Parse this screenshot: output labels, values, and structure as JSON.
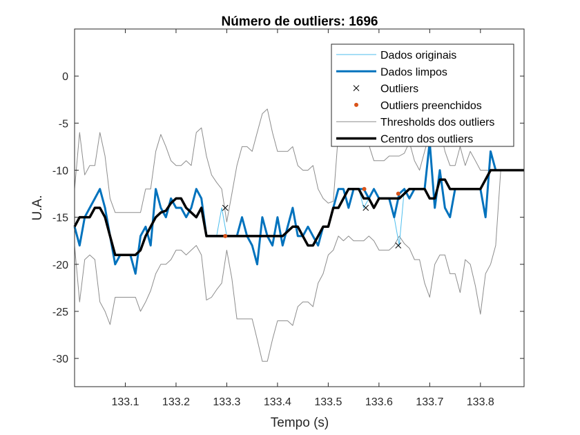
{
  "chart_data": {
    "type": "line",
    "title": "Número de outliers: 1696",
    "xlabel": "Tempo (s)",
    "ylabel": "U.A.",
    "xlim": [
      133.0,
      133.886
    ],
    "ylim": [
      -33,
      5
    ],
    "xticks": [
      133.1,
      133.2,
      133.3,
      133.4,
      133.5,
      133.6,
      133.7,
      133.8
    ],
    "xtick_labels": [
      "133.1",
      "133.2",
      "133.3",
      "133.4",
      "133.5",
      "133.6",
      "133.7",
      "133.8"
    ],
    "yticks": [
      0,
      -5,
      -10,
      -15,
      -20,
      -25,
      -30
    ],
    "ytick_labels": [
      "0",
      "-5",
      "-10",
      "-15",
      "-20",
      "-25",
      "-30"
    ],
    "grid": false,
    "legend_position": "top-right",
    "colors": {
      "original": "#4DBEEE",
      "clean": "#0072BD",
      "outlier_marker": "#000000",
      "filled": "#D95319",
      "threshold": "#8C8C8C",
      "center": "#000000"
    },
    "legend": [
      {
        "label": "Dados originais",
        "style": "line-thin",
        "color": "#4DBEEE"
      },
      {
        "label": "Dados limpos",
        "style": "line-thick",
        "color": "#0072BD"
      },
      {
        "label": "Outliers",
        "style": "x-marker",
        "color": "#000000"
      },
      {
        "label": "Outliers preenchidos",
        "style": "dot-marker",
        "color": "#D95319"
      },
      {
        "label": "Thresholds dos outliers",
        "style": "line-thin",
        "color": "#8C8C8C"
      },
      {
        "label": "Centro dos outliers",
        "style": "line-bold",
        "color": "#000000"
      }
    ],
    "series": [
      {
        "name": "Dados originais",
        "x": [
          133.0,
          133.01,
          133.02,
          133.03,
          133.04,
          133.05,
          133.06,
          133.07,
          133.08,
          133.09,
          133.1,
          133.11,
          133.12,
          133.13,
          133.14,
          133.15,
          133.16,
          133.17,
          133.18,
          133.19,
          133.2,
          133.21,
          133.22,
          133.23,
          133.24,
          133.25,
          133.26,
          133.27,
          133.28,
          133.29,
          133.3,
          133.31,
          133.32,
          133.33,
          133.34,
          133.35,
          133.36,
          133.37,
          133.38,
          133.39,
          133.4,
          133.41,
          133.42,
          133.43,
          133.44,
          133.45,
          133.46,
          133.47,
          133.48,
          133.49,
          133.5,
          133.51,
          133.52,
          133.53,
          133.54,
          133.55,
          133.56,
          133.57,
          133.58,
          133.59,
          133.6,
          133.61,
          133.62,
          133.63,
          133.64,
          133.65,
          133.66,
          133.67,
          133.68,
          133.69,
          133.7,
          133.71,
          133.72,
          133.73,
          133.74,
          133.75,
          133.76,
          133.77,
          133.78,
          133.79,
          133.8,
          133.81,
          133.82,
          133.83,
          133.84
        ],
        "y": [
          -16,
          -18,
          -15,
          -14,
          -13,
          -12,
          -14,
          -17,
          -20,
          -19,
          -19,
          -19,
          -21,
          -17,
          -16,
          -18,
          -12,
          -14,
          -15,
          -13,
          -14,
          -14,
          -15,
          -14,
          -12,
          -13,
          -17,
          -17,
          -17,
          -14,
          -17,
          -17,
          -17,
          -15,
          -17,
          -18,
          -20,
          -15,
          -17,
          -18,
          -15,
          -18,
          -16,
          -14,
          -17,
          -17,
          -16,
          -17,
          -18,
          -16,
          -16,
          -14,
          -12,
          -12,
          -14,
          -12,
          -12,
          -14,
          -13,
          -12,
          -13,
          -13,
          -13,
          -15,
          -18,
          -12,
          -13,
          -12,
          -12,
          -12,
          -7,
          -14,
          -10,
          -14,
          -15,
          -12,
          -12,
          -12,
          -12,
          -12,
          -12,
          -15,
          -8,
          -10,
          -10
        ]
      },
      {
        "name": "Dados limpos",
        "x": [
          133.0,
          133.01,
          133.02,
          133.03,
          133.04,
          133.05,
          133.06,
          133.07,
          133.08,
          133.09,
          133.1,
          133.11,
          133.12,
          133.13,
          133.14,
          133.15,
          133.16,
          133.17,
          133.18,
          133.19,
          133.2,
          133.21,
          133.22,
          133.23,
          133.24,
          133.25,
          133.26,
          133.27,
          133.28,
          133.29,
          133.3,
          133.31,
          133.32,
          133.33,
          133.34,
          133.35,
          133.36,
          133.37,
          133.38,
          133.39,
          133.4,
          133.41,
          133.42,
          133.43,
          133.44,
          133.45,
          133.46,
          133.47,
          133.48,
          133.49,
          133.5,
          133.51,
          133.52,
          133.53,
          133.54,
          133.55,
          133.56,
          133.57,
          133.58,
          133.59,
          133.6,
          133.61,
          133.62,
          133.63,
          133.64,
          133.65,
          133.66,
          133.67,
          133.68,
          133.69,
          133.7,
          133.71,
          133.72,
          133.73,
          133.74,
          133.75,
          133.76,
          133.77,
          133.78,
          133.79,
          133.8,
          133.81,
          133.82,
          133.83,
          133.84
        ],
        "y": [
          -16,
          -18,
          -15,
          -14,
          -13,
          -12,
          -14,
          -17,
          -20,
          -19,
          -19,
          -19,
          -21,
          -17,
          -16,
          -18,
          -12,
          -14,
          -15,
          -13,
          -14,
          -14,
          -15,
          -14,
          -12,
          -13,
          -17,
          -17,
          -17,
          -17,
          -17,
          -17,
          -17,
          -15,
          -17,
          -18,
          -20,
          -15,
          -17,
          -18,
          -15,
          -18,
          -16,
          -14,
          -17,
          -17,
          -16,
          -17,
          -18,
          -16,
          -16,
          -14,
          -12,
          -12,
          -14,
          -12,
          -12,
          -12,
          -13,
          -12,
          -13,
          -13,
          -13,
          -15,
          -12.5,
          -12,
          -13,
          -12,
          -12,
          -12,
          -7,
          -14,
          -10,
          -14,
          -15,
          -12,
          -12,
          -12,
          -12,
          -12,
          -12,
          -15,
          -8,
          -10,
          -10
        ]
      },
      {
        "name": "Outliers",
        "x": [
          133.297,
          133.574,
          133.638
        ],
        "y": [
          -14,
          -14,
          -18
        ]
      },
      {
        "name": "Outliers preenchidos",
        "x": [
          133.297,
          133.571,
          133.638
        ],
        "y": [
          -17,
          -12,
          -12.5
        ]
      },
      {
        "name": "Thresholds dos outliers (superior)",
        "x": [
          133.0,
          133.01,
          133.02,
          133.03,
          133.04,
          133.05,
          133.06,
          133.07,
          133.08,
          133.09,
          133.1,
          133.11,
          133.12,
          133.13,
          133.14,
          133.15,
          133.16,
          133.17,
          133.18,
          133.19,
          133.2,
          133.21,
          133.22,
          133.23,
          133.24,
          133.25,
          133.26,
          133.27,
          133.28,
          133.29,
          133.3,
          133.31,
          133.32,
          133.33,
          133.34,
          133.35,
          133.36,
          133.37,
          133.38,
          133.39,
          133.4,
          133.41,
          133.42,
          133.43,
          133.44,
          133.45,
          133.46,
          133.47,
          133.48,
          133.49,
          133.5,
          133.51,
          133.52,
          133.53,
          133.54,
          133.55,
          133.56,
          133.57,
          133.58,
          133.59,
          133.6,
          133.61,
          133.62,
          133.63,
          133.64,
          133.65,
          133.66,
          133.67,
          133.68,
          133.69,
          133.7,
          133.71,
          133.72,
          133.73,
          133.74,
          133.75,
          133.76,
          133.77,
          133.78,
          133.79,
          133.8,
          133.81,
          133.82,
          133.83,
          133.84
        ],
        "y": [
          -12,
          -6,
          -10.5,
          -9.5,
          -9.5,
          -6,
          -8.5,
          -13,
          -14.5,
          -14.5,
          -14.5,
          -14.5,
          -14.5,
          -14.5,
          -12,
          -12,
          -8,
          -6.2,
          -7.5,
          -9,
          -9.5,
          -9.5,
          -9,
          -9.5,
          -6,
          -5.5,
          -8.5,
          -10.5,
          -11.3,
          -12,
          -15.5,
          -12.5,
          -9.5,
          -7.5,
          -7.5,
          -8,
          -6,
          -4,
          -3.5,
          -6,
          -8,
          -8,
          -8,
          -7.5,
          -9.5,
          -10,
          -10,
          -9.5,
          -12,
          -13,
          -13.5,
          -13.3,
          -6,
          -6.5,
          -7,
          -6.3,
          -6,
          -6.5,
          -7.3,
          -9,
          -9,
          -9,
          -8.5,
          -8.5,
          -8.5,
          -8.2,
          -7,
          -9,
          -10,
          -8,
          -6,
          -6.5,
          -5.5,
          -8,
          -9.5,
          -9.5,
          -7.5,
          -9.5,
          -8,
          -9,
          -10,
          -10,
          -10,
          -10,
          -10
        ]
      },
      {
        "name": "Thresholds dos outliers (inferior)",
        "x": [
          133.0,
          133.01,
          133.02,
          133.03,
          133.04,
          133.05,
          133.06,
          133.07,
          133.08,
          133.09,
          133.1,
          133.11,
          133.12,
          133.13,
          133.14,
          133.15,
          133.16,
          133.17,
          133.18,
          133.19,
          133.2,
          133.21,
          133.22,
          133.23,
          133.24,
          133.25,
          133.26,
          133.27,
          133.28,
          133.29,
          133.3,
          133.31,
          133.32,
          133.33,
          133.34,
          133.35,
          133.36,
          133.37,
          133.38,
          133.39,
          133.4,
          133.41,
          133.42,
          133.43,
          133.44,
          133.45,
          133.46,
          133.47,
          133.48,
          133.49,
          133.5,
          133.51,
          133.52,
          133.53,
          133.54,
          133.55,
          133.56,
          133.57,
          133.58,
          133.59,
          133.6,
          133.61,
          133.62,
          133.63,
          133.64,
          133.65,
          133.66,
          133.67,
          133.68,
          133.69,
          133.7,
          133.71,
          133.72,
          133.73,
          133.74,
          133.75,
          133.76,
          133.77,
          133.78,
          133.79,
          133.8,
          133.81,
          133.82,
          133.83,
          133.84
        ],
        "y": [
          -18,
          -24,
          -19.5,
          -19,
          -19.5,
          -24,
          -25,
          -26.4,
          -23.5,
          -23.5,
          -23.5,
          -23.5,
          -23.5,
          -25,
          -24,
          -22.8,
          -21,
          -20,
          -20,
          -19.5,
          -18.5,
          -18.5,
          -19,
          -18.5,
          -18,
          -19,
          -23.8,
          -23.5,
          -22.7,
          -22,
          -18.5,
          -21.5,
          -25.8,
          -25.8,
          -25.8,
          -25.8,
          -28,
          -30.3,
          -30.3,
          -28,
          -26,
          -26,
          -26,
          -26.5,
          -24.5,
          -24,
          -24,
          -24.5,
          -22,
          -21,
          -19,
          -18.5,
          -17,
          -17.5,
          -17,
          -17.5,
          -17.5,
          -17.5,
          -17,
          -17.5,
          -18.5,
          -18.5,
          -18.5,
          -18,
          -17,
          -17.8,
          -18.3,
          -19.5,
          -19.5,
          -22,
          -23.5,
          -20,
          -19,
          -19,
          -21,
          -21,
          -23,
          -19.5,
          -20,
          -22.3,
          -25.3,
          -21,
          -20,
          -18,
          -10
        ]
      },
      {
        "name": "Centro dos outliers",
        "x": [
          133.0,
          133.01,
          133.02,
          133.03,
          133.04,
          133.05,
          133.06,
          133.07,
          133.08,
          133.09,
          133.1,
          133.11,
          133.12,
          133.13,
          133.14,
          133.15,
          133.16,
          133.17,
          133.18,
          133.19,
          133.2,
          133.21,
          133.22,
          133.23,
          133.24,
          133.25,
          133.26,
          133.27,
          133.28,
          133.29,
          133.3,
          133.31,
          133.32,
          133.33,
          133.34,
          133.35,
          133.36,
          133.37,
          133.38,
          133.39,
          133.4,
          133.41,
          133.42,
          133.43,
          133.44,
          133.45,
          133.46,
          133.47,
          133.48,
          133.49,
          133.5,
          133.51,
          133.52,
          133.53,
          133.54,
          133.55,
          133.56,
          133.57,
          133.58,
          133.59,
          133.6,
          133.61,
          133.62,
          133.63,
          133.64,
          133.65,
          133.66,
          133.67,
          133.68,
          133.69,
          133.7,
          133.71,
          133.72,
          133.73,
          133.74,
          133.75,
          133.76,
          133.77,
          133.78,
          133.79,
          133.8,
          133.81,
          133.82,
          133.83,
          133.84,
          133.886
        ],
        "y": [
          -16,
          -15,
          -15,
          -15,
          -14,
          -14,
          -15,
          -17,
          -19,
          -19,
          -19,
          -19,
          -19,
          -18.5,
          -17,
          -16,
          -15,
          -14.5,
          -14.3,
          -13.5,
          -13,
          -13,
          -14,
          -14.5,
          -15,
          -14,
          -17,
          -17,
          -17,
          -17,
          -17,
          -17,
          -17,
          -17,
          -17,
          -17,
          -17,
          -17,
          -17,
          -17,
          -17,
          -17,
          -16.5,
          -16,
          -16,
          -17,
          -18,
          -18,
          -17,
          -16,
          -16,
          -14,
          -14,
          -13,
          -12,
          -12,
          -12,
          -13,
          -13,
          -14,
          -13,
          -13,
          -13,
          -13,
          -13,
          -12.5,
          -12,
          -12,
          -12,
          -12,
          -13,
          -13,
          -11,
          -11,
          -12,
          -12,
          -12,
          -12,
          -12,
          -12,
          -12,
          -11,
          -10,
          -10,
          -10,
          -10
        ]
      }
    ]
  }
}
